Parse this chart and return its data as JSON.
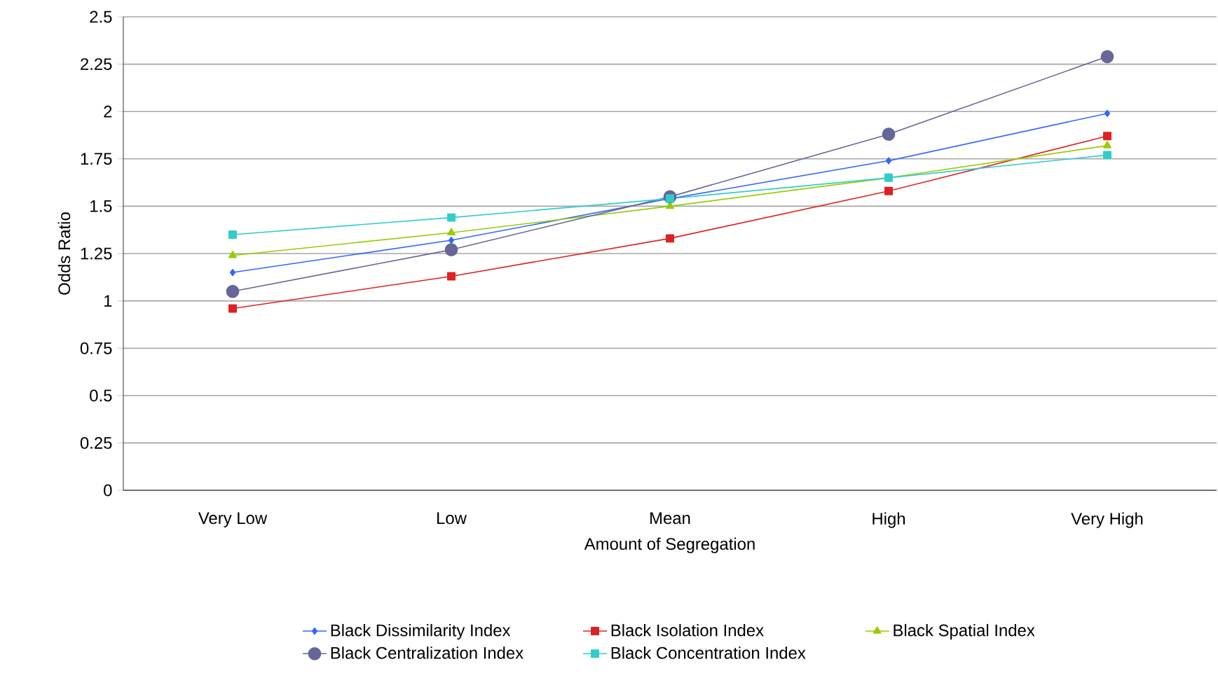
{
  "chart_data": {
    "type": "line",
    "xlabel": "Amount of Segregation",
    "ylabel": "Odds Ratio",
    "categories": [
      "Very Low",
      "Low",
      "Mean",
      "High",
      "Very High"
    ],
    "series": [
      {
        "name": "Black Dissimilarity Index",
        "color": "#3366ff",
        "marker": "diamond",
        "values": [
          1.15,
          1.32,
          1.54,
          1.74,
          1.99
        ]
      },
      {
        "name": "Black Isolation Index",
        "color": "#dd2222",
        "marker": "square",
        "values": [
          0.96,
          1.13,
          1.33,
          1.58,
          1.87
        ]
      },
      {
        "name": "Black Spatial Index",
        "color": "#99cc00",
        "marker": "triangle",
        "values": [
          1.24,
          1.36,
          1.5,
          1.65,
          1.82
        ]
      },
      {
        "name": "Black Centralization Index",
        "color": "#666699",
        "marker": "circle",
        "values": [
          1.05,
          1.27,
          1.55,
          1.88,
          2.29
        ]
      },
      {
        "name": "Black Concentration Index",
        "color": "#33cccc",
        "marker": "square",
        "values": [
          1.35,
          1.44,
          1.54,
          1.65,
          1.77
        ]
      }
    ],
    "ylim": [
      0,
      2.5
    ],
    "yticks": [
      0,
      0.25,
      0.5,
      0.75,
      1,
      1.25,
      1.5,
      1.75,
      2,
      2.25,
      2.5
    ],
    "grid": "y",
    "legend": "bottom",
    "line_style": "solid"
  }
}
